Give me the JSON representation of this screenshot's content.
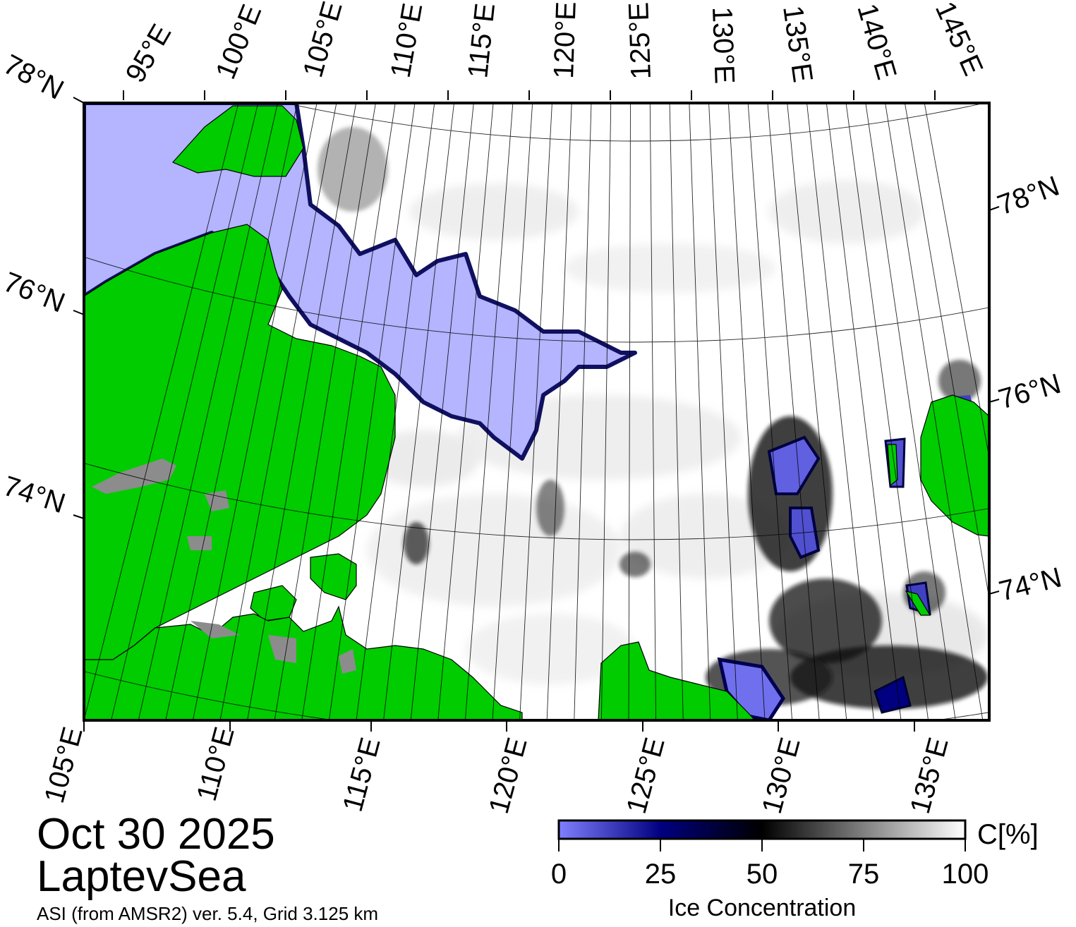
{
  "title": {
    "date": "Oct 30 2025",
    "region": "LaptevSea",
    "source": "ASI (from AMSR2) ver. 5.4,  Grid 3.125 km"
  },
  "top_lon_labels": [
    "95°E",
    "100°E",
    "105°E",
    "110°E",
    "115°E",
    "120°E",
    "125°E",
    "130°E",
    "135°E",
    "140°E",
    "145°E"
  ],
  "bottom_lon_labels": [
    "105°E",
    "110°E",
    "115°E",
    "120°E",
    "125°E",
    "130°E",
    "135°E"
  ],
  "left_lat_labels": [
    "78°N",
    "76°N",
    "74°N"
  ],
  "right_lat_labels": [
    "78°N",
    "76°N",
    "74°N"
  ],
  "colorbar": {
    "unit_label": "C[%]",
    "title": "Ice Concentration",
    "ticks": [
      "0",
      "25",
      "50",
      "75",
      "100"
    ]
  },
  "colors": {
    "land": "#00cc00",
    "open_water": "#b4b4ff",
    "ice_full": "#ffffff",
    "ice_mid": "#000000",
    "ice_low": "#000080",
    "missing": "#808080"
  },
  "legend_icons": [
    "map-frame",
    "graticule"
  ]
}
